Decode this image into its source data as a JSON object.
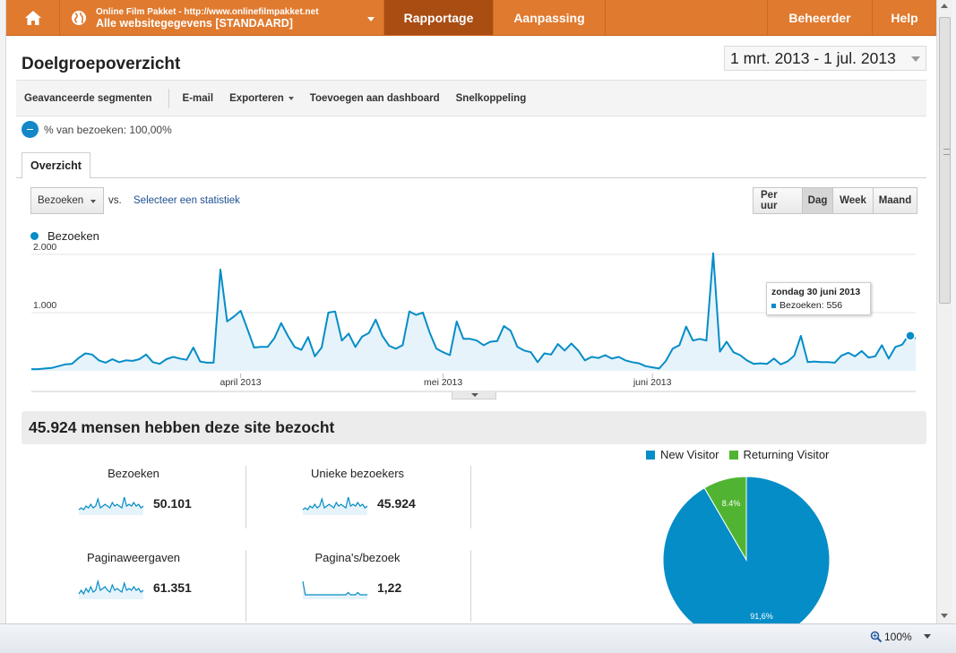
{
  "nav": {
    "account_top": "Online Film Pakket - http://www.onlinefilmpakket.net",
    "account_bottom": "Alle websitegegevens [STANDAARD]",
    "tab_reporting": "Rapportage",
    "tab_customization": "Aanpassing",
    "tab_admin": "Beheerder",
    "tab_help": "Help",
    "accent_color": "#e07a2f",
    "active_color": "#a94d13"
  },
  "header": {
    "title": "Doelgroepoverzicht",
    "date_range": "1 mrt. 2013 - 1 jul. 2013"
  },
  "toolbar": {
    "segments": "Geavanceerde segmenten",
    "email": "E-mail",
    "export": "Exporteren",
    "dashboard": "Toevoegen aan dashboard",
    "shortcut": "Snelkoppeling"
  },
  "segment": {
    "label": "% van bezoeken: 100,00%"
  },
  "tabs": {
    "overview": "Overzicht"
  },
  "controls": {
    "metric": "Bezoeken",
    "vs": "vs.",
    "select_stat": "Selecteer een statistiek",
    "periods": [
      "Per uur",
      "Dag",
      "Week",
      "Maand"
    ],
    "active_period": "Dag"
  },
  "tooltip": {
    "date": "zondag 30 juni 2013",
    "value": "Bezoeken: 556"
  },
  "chart_data": {
    "type": "area",
    "legend": [
      "Bezoeken"
    ],
    "color": "#058dc7",
    "y_ticks": [
      "1.000",
      "2.000"
    ],
    "ylim": [
      0,
      2000
    ],
    "x_ticks": [
      "april 2013",
      "mei 2013",
      "juni 2013"
    ],
    "x_tick_index": [
      31,
      61,
      92
    ],
    "series": [
      {
        "name": "Bezoeken",
        "values": [
          30,
          30,
          40,
          50,
          80,
          110,
          120,
          220,
          300,
          280,
          180,
          140,
          200,
          150,
          180,
          170,
          200,
          280,
          150,
          120,
          200,
          240,
          210,
          190,
          400,
          160,
          140,
          140,
          1740,
          850,
          930,
          1030,
          720,
          400,
          410,
          410,
          560,
          820,
          600,
          410,
          360,
          580,
          250,
          400,
          1000,
          1020,
          520,
          640,
          410,
          590,
          650,
          880,
          600,
          430,
          380,
          440,
          1020,
          960,
          1000,
          660,
          380,
          320,
          270,
          850,
          550,
          550,
          520,
          440,
          500,
          510,
          770,
          690,
          410,
          350,
          320,
          150,
          300,
          280,
          460,
          350,
          470,
          350,
          180,
          240,
          220,
          270,
          210,
          240,
          180,
          150,
          130,
          80,
          60,
          40,
          170,
          380,
          440,
          760,
          520,
          550,
          520,
          2020,
          330,
          500,
          320,
          270,
          180,
          120,
          130,
          120,
          210,
          110,
          160,
          260,
          600,
          150,
          160,
          150,
          150,
          140,
          260,
          310,
          250,
          340,
          230,
          250,
          440,
          210,
          410,
          450,
          620,
          556
        ]
      }
    ]
  },
  "summary": {
    "title": "45.924 mensen hebben deze site bezocht",
    "metrics": [
      {
        "label": "Bezoeken",
        "value": "50.101",
        "spark": [
          3,
          4,
          3,
          5,
          4,
          6,
          4,
          5,
          9,
          4,
          5,
          6,
          5,
          4,
          7,
          5,
          6,
          5,
          4,
          10,
          5,
          6,
          5,
          7,
          5,
          6,
          4,
          5
        ]
      },
      {
        "label": "Unieke bezoekers",
        "value": "45.924",
        "spark": [
          3,
          4,
          3,
          5,
          4,
          6,
          4,
          5,
          9,
          4,
          5,
          6,
          5,
          4,
          7,
          5,
          6,
          5,
          4,
          10,
          5,
          6,
          5,
          7,
          5,
          6,
          4,
          5
        ]
      },
      {
        "label": "Paginaweergaven",
        "value": "61.351",
        "spark": [
          3,
          5,
          3,
          6,
          4,
          7,
          4,
          5,
          10,
          5,
          6,
          7,
          5,
          4,
          8,
          5,
          6,
          5,
          4,
          9,
          5,
          6,
          5,
          7,
          5,
          6,
          4,
          5
        ]
      },
      {
        "label": "Pagina's/bezoek",
        "value": "1,22",
        "spark": [
          8,
          2,
          2,
          2,
          2,
          2,
          2,
          2,
          2,
          2,
          2,
          2,
          2,
          2,
          2,
          2,
          2,
          2,
          2,
          3,
          2,
          2,
          2,
          3,
          2,
          2,
          2,
          2
        ]
      }
    ]
  },
  "pie_data": {
    "type": "pie",
    "legend": [
      "New Visitor",
      "Returning Visitor"
    ],
    "values": [
      91.6,
      8.4
    ],
    "labels": [
      "91,6%",
      "8.4%"
    ],
    "colors": [
      "#058dc7",
      "#50b432"
    ]
  },
  "statusbar": {
    "zoom": "100%"
  }
}
